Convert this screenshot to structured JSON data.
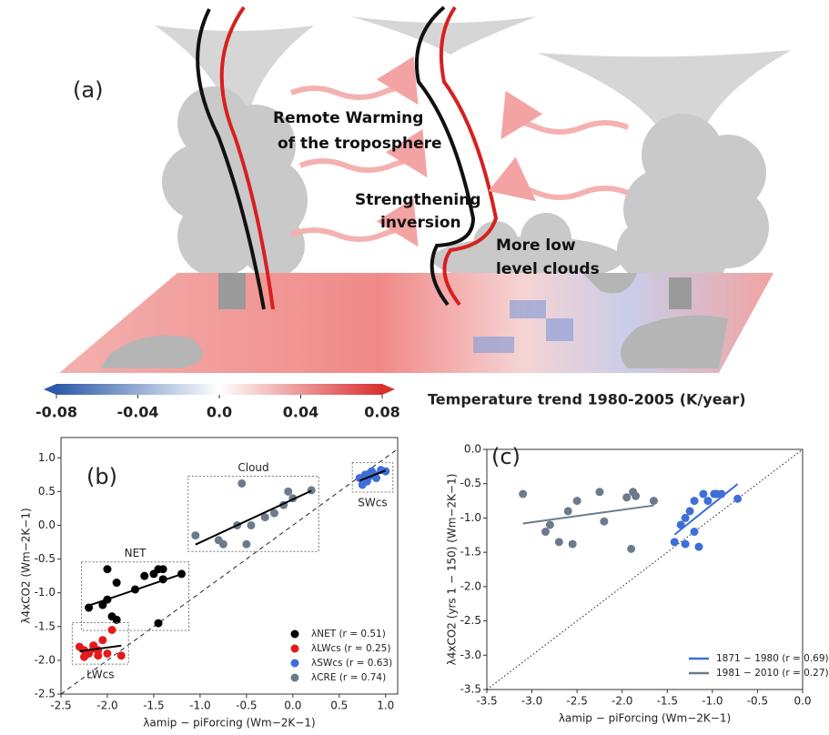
{
  "chart_data": [
    {
      "type": "illustration",
      "panel_label": "(a)",
      "annotations": [
        "Remote Warming",
        "of the troposphere",
        "Strengthening",
        "inversion",
        "More low",
        "level clouds"
      ],
      "colorbar": {
        "title": "Temperature trend 1980-2005 (K/year)",
        "colors": [
          "#2c5aa8",
          "#ffffff",
          "#d7302f"
        ],
        "xlim": [
          -0.08,
          0.08
        ],
        "xticks": [
          -0.08,
          -0.04,
          {
            "value": 0,
            "label": "0.0"
          },
          0.04,
          0.08
        ]
      }
    },
    {
      "type": "scatter",
      "panel_label": "(b)",
      "xlabel": "λamip − piForcing (Wm−2K−1)",
      "ylabel": "λ4xCO2 (Wm−2K−1)",
      "xlim": [
        -2.5,
        1.13
      ],
      "ylim": [
        -2.5,
        1.3
      ],
      "xticks": [
        -2.5,
        {
          "value": -2,
          "label": "-2.0"
        },
        -1.5,
        {
          "value": -1,
          "label": "-1.0"
        },
        -0.5,
        {
          "value": 0,
          "label": "0.0"
        },
        0.5,
        {
          "value": 1,
          "label": "1.0"
        }
      ],
      "yticks": [
        -2.5,
        {
          "value": -2,
          "label": "-2.0"
        },
        -1.5,
        {
          "value": -1,
          "label": "-1.0"
        },
        -0.5,
        {
          "value": 0,
          "label": "0.0"
        },
        0.5,
        {
          "value": 1,
          "label": "1.0"
        }
      ],
      "legend": "lower right",
      "legend_marker": "dot",
      "diagonal_style": "dashed",
      "series": [
        {
          "name": "λNET (r = 0.51)",
          "group_label": "NET",
          "color": "#000000",
          "x": [
            -2.2,
            -2.05,
            -2.0,
            -1.9,
            -2.0,
            -1.95,
            -1.9,
            -1.7,
            -1.6,
            -1.5,
            -1.45,
            -1.4,
            -1.4,
            -1.2,
            -1.45
          ],
          "y": [
            -1.22,
            -1.18,
            -0.65,
            -0.85,
            -1.1,
            -1.35,
            -1.4,
            -0.95,
            -0.75,
            -0.72,
            -0.65,
            -0.65,
            -0.8,
            -0.72,
            -1.45
          ]
        },
        {
          "name": "λLWcs (r = 0.25)",
          "group_label": "LWcs",
          "color": "#e8191c",
          "x": [
            -2.3,
            -2.25,
            -2.2,
            -2.15,
            -2.1,
            -2.05,
            -2.1,
            -2.0,
            -1.95,
            -2.25,
            -1.85,
            -2.15
          ],
          "y": [
            -1.8,
            -1.85,
            -1.9,
            -1.78,
            -1.93,
            -1.7,
            -1.85,
            -1.9,
            -1.55,
            -1.95,
            -1.93,
            -1.83
          ]
        },
        {
          "name": "λSWcs (r = 0.63)",
          "group_label": "SWcs",
          "color": "#3e6fd8",
          "x": [
            0.72,
            0.78,
            0.8,
            0.85,
            0.9,
            0.95,
            0.75,
            0.88,
            1.0,
            0.82
          ],
          "y": [
            0.7,
            0.75,
            0.65,
            0.8,
            0.7,
            0.82,
            0.6,
            0.75,
            0.8,
            0.72
          ]
        },
        {
          "name": "λCRE (r = 0.74)",
          "group_label": "Cloud",
          "color": "#6b7b8c",
          "x": [
            -1.05,
            -0.8,
            -0.75,
            -0.6,
            -0.55,
            -0.5,
            -0.45,
            -0.3,
            -0.2,
            -0.1,
            -0.05,
            0.0,
            0.2
          ],
          "y": [
            -0.15,
            -0.22,
            -0.28,
            0.0,
            0.62,
            -0.28,
            0.0,
            0.12,
            0.18,
            0.3,
            0.5,
            0.4,
            0.52
          ]
        }
      ]
    },
    {
      "type": "scatter",
      "panel_label": "(c)",
      "xlabel": "λamip − piForcing (Wm−2K−1)",
      "ylabel": "λ4xCO2 (yrs 1 − 150) (Wm−2K−1)",
      "xlim": [
        -3.5,
        0
      ],
      "ylim": [
        -3.5,
        0
      ],
      "xticks": [
        -3.5,
        {
          "value": -3,
          "label": "-3.0"
        },
        -2.5,
        {
          "value": -2,
          "label": "-2.0"
        },
        -1.5,
        {
          "value": -1,
          "label": "-1.0"
        },
        -0.5,
        {
          "value": 0,
          "label": "0.0"
        }
      ],
      "yticks": [
        -3.5,
        {
          "value": -3,
          "label": "-3.0"
        },
        -2.5,
        {
          "value": -2,
          "label": "-2.0"
        },
        -1.5,
        {
          "value": -1,
          "label": "-1.0"
        },
        -0.5,
        {
          "value": 0,
          "label": "0.0"
        }
      ],
      "legend": "lower right",
      "legend_marker": "line",
      "diagonal_style": "dotted",
      "series": [
        {
          "name": "1871 − 1980 (r = 0.69)",
          "color": "#3e6fd8",
          "x": [
            -1.42,
            -1.35,
            -1.3,
            -1.25,
            -1.2,
            -1.2,
            -1.15,
            -1.1,
            -1.05,
            -0.98,
            -0.95,
            -0.9,
            -0.72,
            -1.3
          ],
          "y": [
            -1.35,
            -1.1,
            -1.38,
            -0.9,
            -0.75,
            -1.2,
            -1.42,
            -0.65,
            -0.75,
            -0.65,
            -0.65,
            -0.65,
            -0.72,
            -1.0
          ]
        },
        {
          "name": "1981 − 2010 (r = 0.27)",
          "color": "#6b7b8c",
          "x": [
            -3.1,
            -2.85,
            -2.8,
            -2.7,
            -2.6,
            -2.55,
            -2.5,
            -2.25,
            -2.2,
            -1.95,
            -1.9,
            -1.88,
            -1.85,
            -1.65
          ],
          "y": [
            -0.65,
            -1.2,
            -1.1,
            -1.35,
            -0.9,
            -1.38,
            -0.75,
            -0.62,
            -1.05,
            -0.7,
            -1.45,
            -0.62,
            -0.68,
            -0.75
          ]
        }
      ]
    }
  ]
}
